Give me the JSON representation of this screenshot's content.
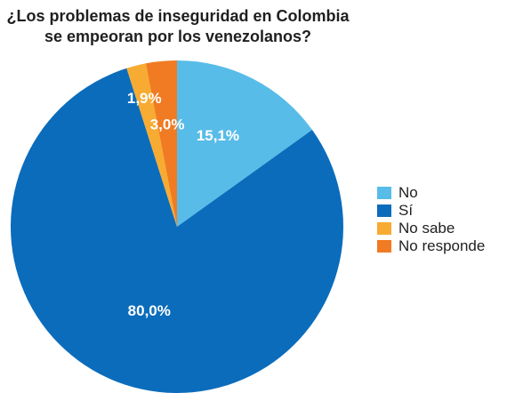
{
  "chart_data": {
    "type": "pie",
    "title": [
      "¿Los problemas de inseguridad en Colombia",
      "se empeoran por los venezolanos?"
    ],
    "slices": [
      {
        "name": "No",
        "value": 15.1,
        "label": "15,1%",
        "color": "#58bce8"
      },
      {
        "name": "Sí",
        "value": 80.0,
        "label": "80,0%",
        "color": "#0b6cbb"
      },
      {
        "name": "No sabe",
        "value": 1.9,
        "label": "1,9%",
        "color": "#f8ab32"
      },
      {
        "name": "No responde",
        "value": 3.0,
        "label": "3,0%",
        "color": "#f07b22"
      }
    ],
    "legend_position": "right",
    "start": "top",
    "direction": "clockwise"
  }
}
